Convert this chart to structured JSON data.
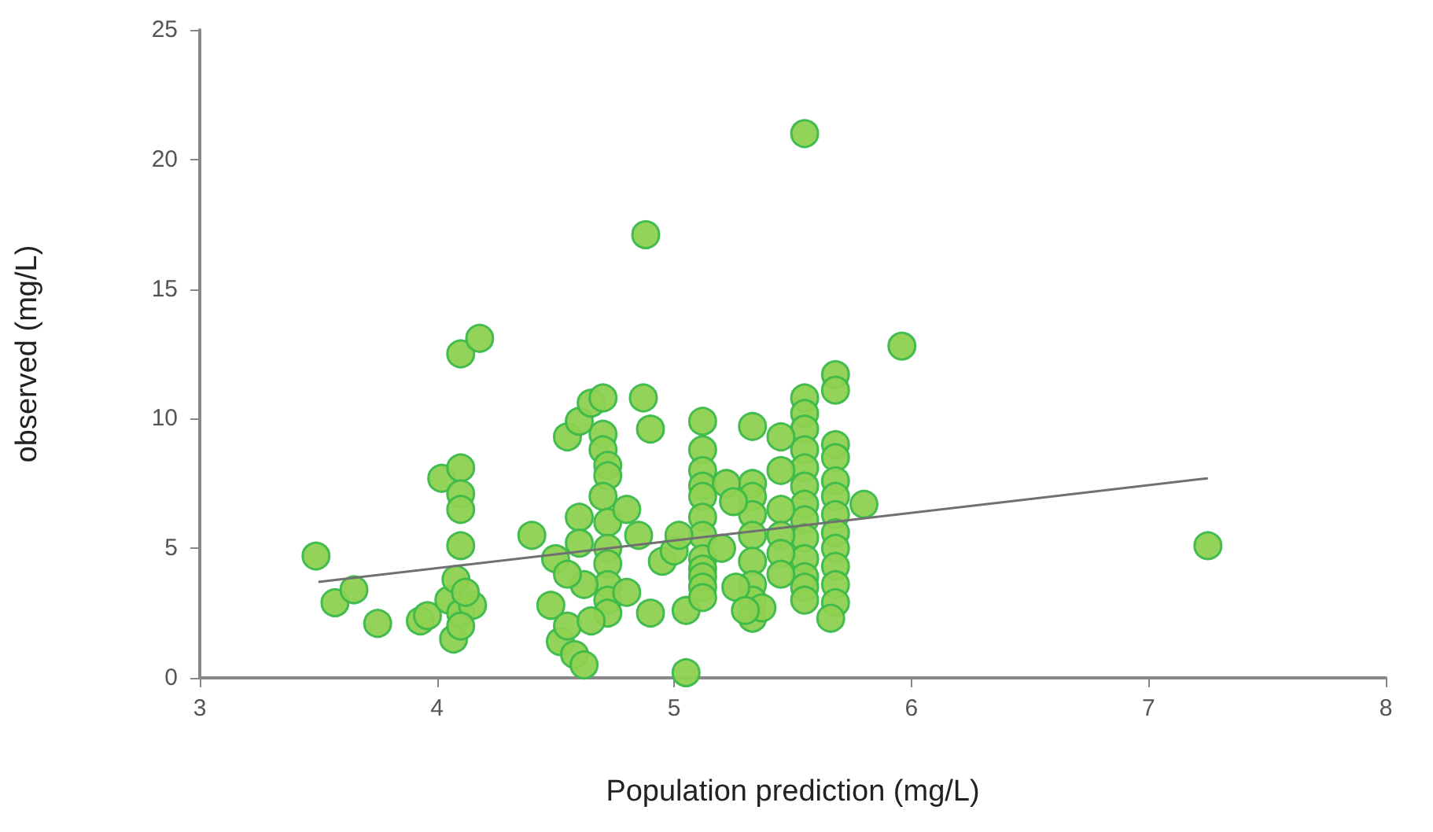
{
  "chart_data": {
    "type": "scatter",
    "xlabel": "Population prediction (mg/L)",
    "ylabel": "observed (mg/L)",
    "xlim": [
      3,
      8
    ],
    "xticks": [
      3,
      4,
      5,
      6,
      7,
      8
    ],
    "ylim": [
      0,
      25
    ],
    "yticks": [
      0,
      5,
      10,
      15,
      20,
      25
    ],
    "grid": false,
    "marker": "circle",
    "series": [
      {
        "color": "#8ed150",
        "x": [
          3.49,
          3.57,
          3.65,
          3.75,
          3.93,
          3.96,
          4.02,
          4.05,
          4.07,
          4.08,
          4.1,
          4.18,
          4.1,
          4.1,
          4.1,
          4.1,
          4.1,
          4.15,
          4.1,
          4.12,
          4.4,
          4.48,
          4.5,
          4.52,
          4.55,
          4.58,
          4.62,
          4.55,
          4.6,
          4.6,
          4.65,
          4.7,
          4.7,
          4.7,
          4.72,
          4.72,
          4.7,
          4.72,
          4.72,
          4.72,
          4.72,
          4.72,
          4.72,
          4.62,
          4.55,
          4.6,
          4.65,
          4.8,
          4.85,
          4.8,
          4.9,
          4.87,
          4.9,
          4.88,
          4.95,
          5.05,
          5.05,
          5.12,
          5.12,
          5.12,
          5.12,
          5.12,
          5.12,
          5.12,
          5.12,
          5.12,
          5.12,
          5.12,
          5.12,
          5.0,
          5.02,
          5.33,
          5.33,
          5.33,
          5.33,
          5.33,
          5.33,
          5.33,
          5.33,
          5.33,
          5.37,
          5.22,
          5.25,
          5.2,
          5.26,
          5.3,
          5.55,
          5.55,
          5.55,
          5.55,
          5.55,
          5.55,
          5.55,
          5.55,
          5.55,
          5.55,
          5.55,
          5.55,
          5.55,
          5.55,
          5.45,
          5.45,
          5.45,
          5.45,
          5.45,
          5.45,
          5.68,
          5.68,
          5.68,
          5.68,
          5.68,
          5.68,
          5.68,
          5.68,
          5.68,
          5.68,
          5.68,
          5.68,
          5.66,
          5.8,
          5.96,
          7.25
        ],
        "values": [
          4.7,
          2.9,
          3.4,
          2.1,
          2.2,
          2.4,
          7.7,
          3.0,
          1.5,
          3.8,
          12.5,
          13.1,
          8.1,
          7.1,
          6.5,
          5.1,
          2.5,
          2.8,
          2.0,
          3.3,
          5.5,
          2.8,
          4.6,
          1.4,
          2.0,
          0.9,
          0.5,
          9.3,
          9.9,
          6.2,
          10.6,
          10.8,
          9.4,
          8.8,
          8.2,
          7.8,
          7.0,
          6.0,
          5.0,
          4.4,
          3.6,
          3.0,
          2.5,
          3.6,
          4.0,
          5.2,
          2.2,
          6.5,
          5.5,
          3.3,
          2.5,
          10.8,
          9.6,
          17.1,
          4.5,
          2.6,
          0.2,
          9.9,
          8.8,
          8.0,
          7.4,
          7.0,
          6.2,
          5.5,
          4.6,
          4.2,
          3.9,
          3.5,
          3.1,
          4.9,
          5.5,
          9.7,
          7.5,
          7.0,
          6.3,
          5.5,
          4.5,
          3.6,
          3.0,
          2.3,
          2.7,
          7.5,
          6.8,
          5.0,
          3.5,
          2.6,
          21.0,
          10.8,
          10.2,
          9.6,
          8.8,
          8.1,
          7.4,
          6.7,
          6.1,
          5.4,
          4.6,
          3.9,
          3.5,
          3.0,
          9.3,
          8.0,
          6.5,
          5.5,
          4.8,
          4.0,
          11.7,
          11.1,
          9.0,
          8.5,
          7.6,
          7.0,
          6.3,
          5.6,
          5.0,
          4.3,
          3.6,
          2.9,
          2.3,
          6.7,
          12.8,
          5.1
        ]
      },
      {
        "type": "line",
        "color": "#707070",
        "marker": "none",
        "x": [
          3.5,
          7.25
        ],
        "values": [
          3.7,
          7.7
        ]
      }
    ]
  }
}
